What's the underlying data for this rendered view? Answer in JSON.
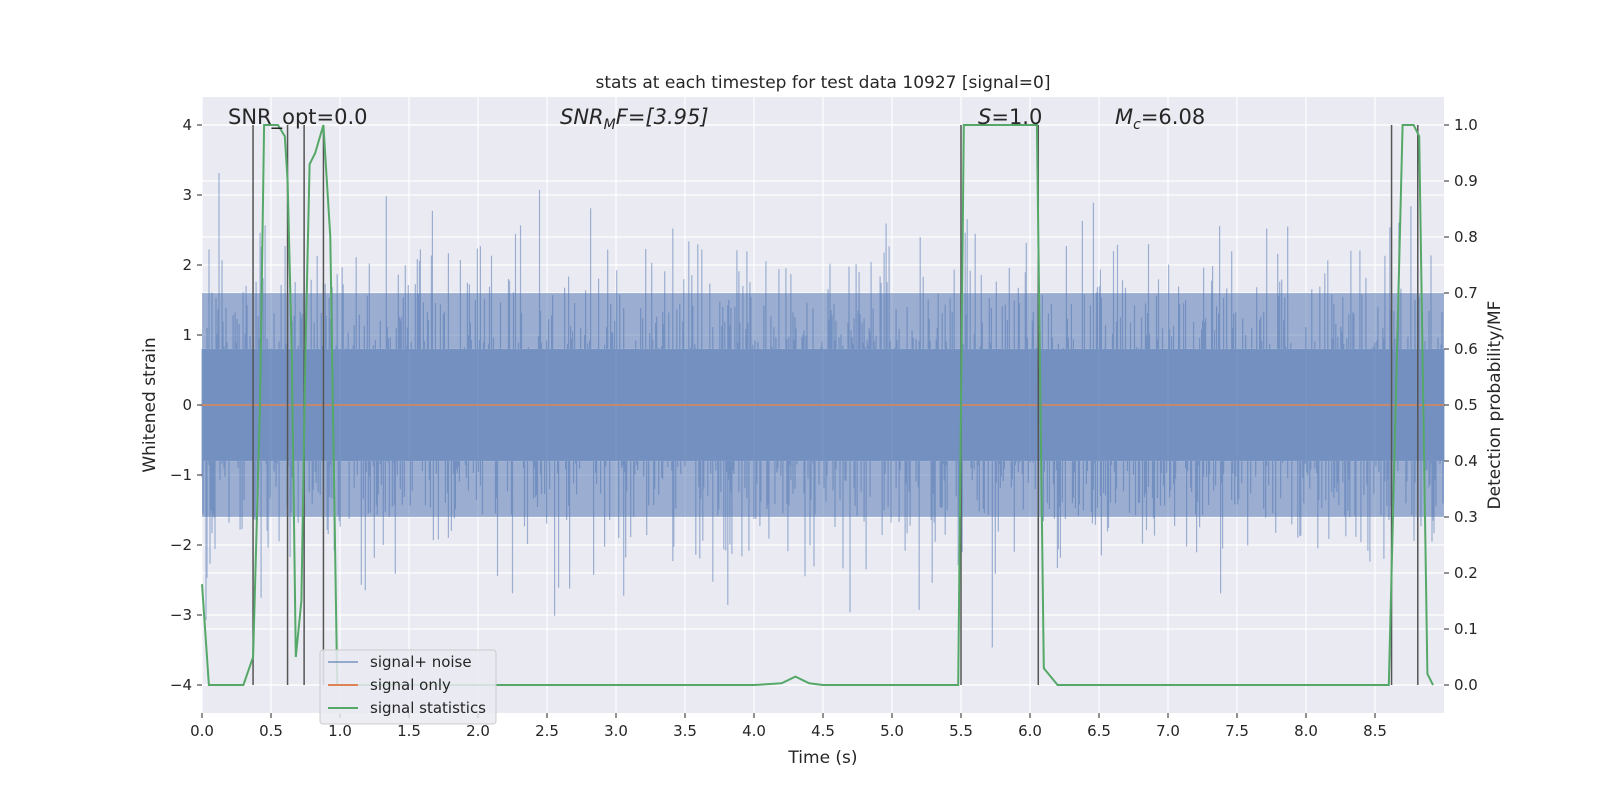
{
  "chart_data": {
    "type": "line",
    "title": "stats at each timestep for test data 10927 [signal=0]",
    "xlabel": "Time (s)",
    "ylabel": "Whitened strain",
    "y2label": "Detection probability/MF",
    "xlim": [
      0,
      9.0
    ],
    "ylim": [
      -4.4,
      4.4
    ],
    "y2lim": [
      -0.05,
      1.05
    ],
    "xticks": [
      "0.0",
      "0.5",
      "1.0",
      "1.5",
      "2.0",
      "2.5",
      "3.0",
      "3.5",
      "4.0",
      "4.5",
      "5.0",
      "5.5",
      "6.0",
      "6.5",
      "7.0",
      "7.5",
      "8.0",
      "8.5"
    ],
    "yticks": [
      "−4",
      "−3",
      "−2",
      "−1",
      "0",
      "1",
      "2",
      "3",
      "4"
    ],
    "y2ticks": [
      "0.0",
      "0.1",
      "0.2",
      "0.3",
      "0.4",
      "0.5",
      "0.6",
      "0.7",
      "0.8",
      "0.9",
      "1.0"
    ],
    "grid": true,
    "legend_position": "lower-left",
    "annotations": {
      "snr_opt": "SNR_opt=0.0",
      "snr_mf_main": "SNR",
      "snr_mf_sub": "M",
      "snr_mf_rest": "F=[3.95]",
      "s_main": "S",
      "s_rest": "=1.0",
      "mc_main": "M",
      "mc_sub": "c",
      "mc_rest": "=6.08"
    },
    "series": [
      {
        "name": "signal+ noise",
        "color": "#4c72b0",
        "description": "whitened strain noise, std ≈ 1, amplitude within about ±4"
      },
      {
        "name": "signal only",
        "color": "#dd8452",
        "values_constant": 0
      },
      {
        "name": "signal statistics",
        "color": "#55a868",
        "axis": "right",
        "x": [
          0.0,
          0.05,
          0.1,
          0.3,
          0.37,
          0.42,
          0.45,
          0.48,
          0.55,
          0.6,
          0.62,
          0.65,
          0.68,
          0.72,
          0.75,
          0.78,
          0.82,
          0.88,
          0.93,
          0.98,
          1.05,
          1.3,
          2.0,
          3.0,
          4.0,
          4.2,
          4.3,
          4.4,
          4.5,
          5.0,
          5.48,
          5.52,
          5.6,
          6.05,
          6.1,
          6.2,
          7.0,
          8.0,
          8.6,
          8.65,
          8.7,
          8.78,
          8.82,
          8.88,
          8.92
        ],
        "y": [
          0.18,
          0.0,
          0.0,
          0.0,
          0.05,
          0.5,
          1.0,
          1.0,
          1.0,
          0.98,
          0.9,
          0.6,
          0.05,
          0.15,
          0.6,
          0.93,
          0.95,
          1.0,
          0.8,
          0.0,
          0.0,
          0.0,
          0.0,
          0.0,
          0.0,
          0.003,
          0.015,
          0.003,
          0.0,
          0.0,
          0.0,
          1.0,
          1.0,
          1.0,
          0.03,
          0.0,
          0.0,
          0.0,
          0.0,
          0.5,
          1.0,
          1.0,
          0.98,
          0.02,
          0.0
        ]
      }
    ],
    "vertical_lines_x": [
      0.37,
      0.62,
      0.74,
      0.88,
      5.5,
      6.06,
      8.62,
      8.81
    ]
  }
}
